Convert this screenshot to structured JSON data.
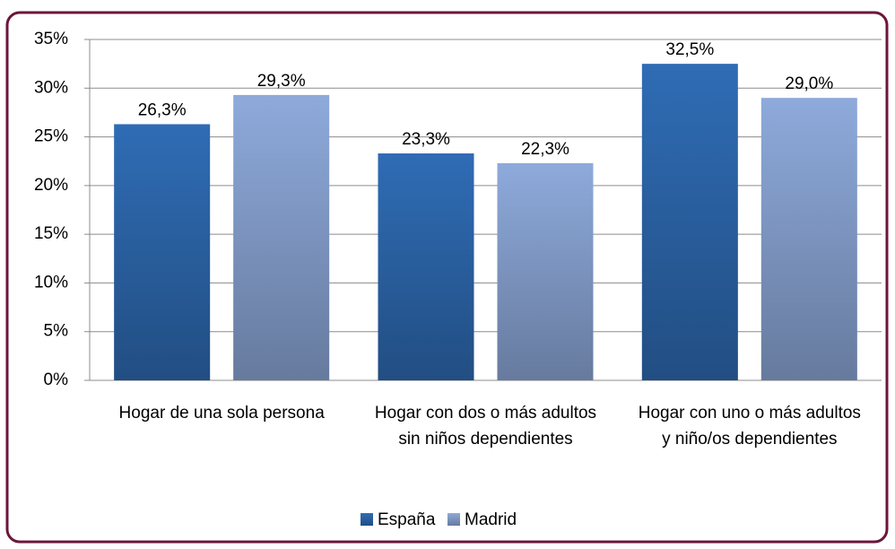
{
  "chart_data": {
    "type": "bar",
    "categories": [
      "Hogar de una sola persona",
      "Hogar con dos o más adultos sin niños dependientes",
      "Hogar con uno o más adultos y niño/os dependientes"
    ],
    "series": [
      {
        "name": "España",
        "color": "#2f6cb5",
        "values": [
          26.3,
          23.3,
          32.5
        ],
        "value_labels": [
          "26,3%",
          "23,3%",
          "32,5%"
        ]
      },
      {
        "name": "Madrid",
        "color": "#8eaadb",
        "values": [
          29.3,
          22.3,
          29.0
        ],
        "value_labels": [
          "29,3%",
          "22,3%",
          "29,0%"
        ]
      }
    ],
    "ylim": [
      0,
      35
    ],
    "yticks": [
      {
        "value": 0,
        "label": "0%"
      },
      {
        "value": 5,
        "label": "5%"
      },
      {
        "value": 10,
        "label": "10%"
      },
      {
        "value": 15,
        "label": "15%"
      },
      {
        "value": 20,
        "label": "20%"
      },
      {
        "value": 25,
        "label": "25%"
      },
      {
        "value": 30,
        "label": "30%"
      },
      {
        "value": 35,
        "label": "35%"
      }
    ],
    "grid": true,
    "legend": "bottom"
  }
}
